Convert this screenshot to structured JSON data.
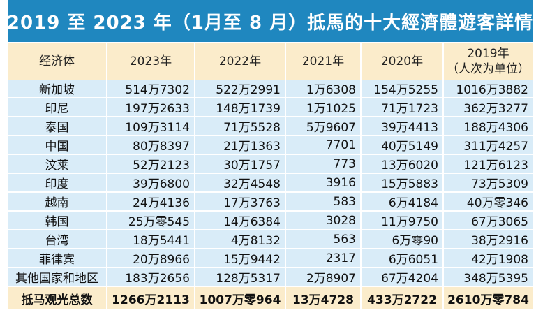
{
  "title": "2019 至 2023 年（1月至 8 月）抵馬的十大經濟體遊客詳情",
  "headers": [
    "经济体",
    "2023年",
    "2022年",
    "2021年",
    "2020年",
    "2019年",
    "（人次为单位）"
  ],
  "rows": [
    [
      "新加坡",
      "514万7302",
      "522万2991",
      "1万6308",
      "154万5255",
      "1016万3882"
    ],
    [
      "印尼",
      "197万2633",
      "148万1739",
      "1万1025",
      "71万1723",
      "362万3277"
    ],
    [
      "泰国",
      "109万3114",
      "71万5528",
      "5万9607",
      "39万4413",
      "188万4306"
    ],
    [
      "中国",
      "80万8397",
      "21万1363",
      "7701",
      "40万5149",
      "311万4257"
    ],
    [
      "汶莱",
      "52万2123",
      "30万1757",
      "773",
      "13万6020",
      "121万6123"
    ],
    [
      "印度",
      "39万6800",
      "32万4548",
      "3916",
      "15万5883",
      "73万5309"
    ],
    [
      "越南",
      "24万4136",
      "17万3763",
      "583",
      "6万4184",
      "40万零346"
    ],
    [
      "韩国",
      "25万零545",
      "14万6384",
      "3028",
      "11万9750",
      "67万3065"
    ],
    [
      "台湾",
      "18万5441",
      "4万8132",
      "563",
      "6万零90",
      "38万2916"
    ],
    [
      "菲律宾",
      "20万8966",
      "15万9442",
      "2317",
      "6万6051",
      "42万1908"
    ],
    [
      "其他国家和地区",
      "183万2656",
      "128万5317",
      "2万8907",
      "67万4204",
      "348万5395"
    ]
  ],
  "total": [
    "抵马观光总数",
    "1266万2113",
    "1007万零964",
    "13万4728",
    "433万2722",
    "2610万零784"
  ]
}
